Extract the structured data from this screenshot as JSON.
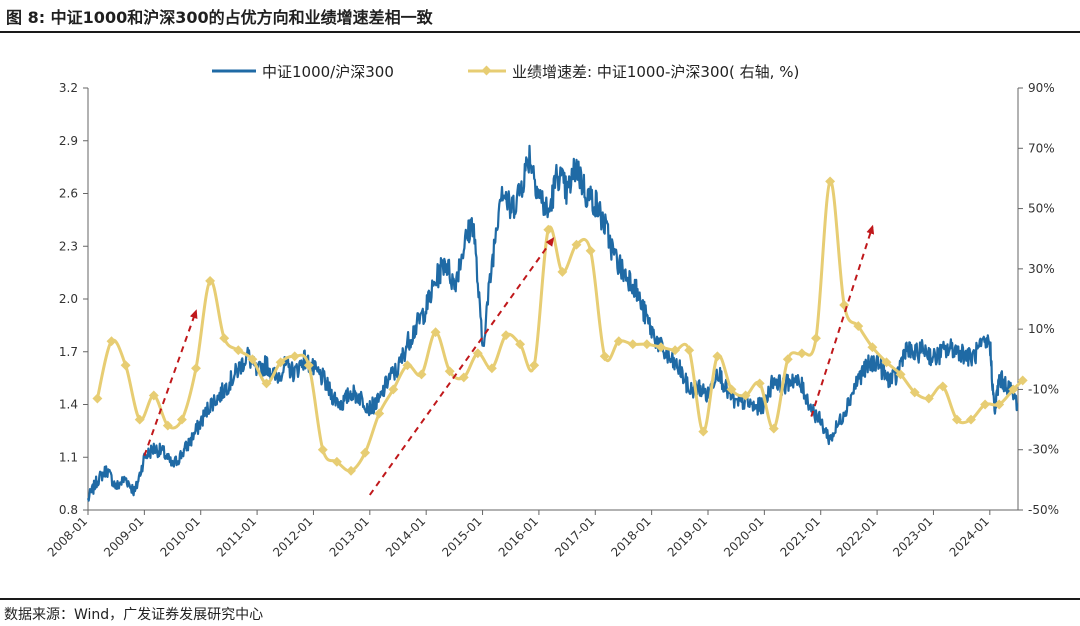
{
  "figure_title": "图 8:  中证1000和沪深300的占优方向和业绩增速差相一致",
  "source_note": "数据来源：Wind，广发证券发展研究中心",
  "colors": {
    "ratio": "#1f6aa5",
    "growth": "#e7cd73",
    "arrow": "#c0181b",
    "axis": "#666666"
  },
  "chart_data": {
    "type": "line",
    "legend_position": "top",
    "x_tick_labels": [
      "2008-01",
      "2009-01",
      "2010-01",
      "2011-01",
      "2012-01",
      "2013-01",
      "2014-01",
      "2015-01",
      "2016-01",
      "2017-01",
      "2018-01",
      "2019-01",
      "2020-01",
      "2021-01",
      "2022-01",
      "2023-01",
      "2024-01"
    ],
    "x_range": [
      "2008-01",
      "2024-07"
    ],
    "y_left": {
      "ticks": [
        "0.8",
        "1.1",
        "1.4",
        "1.7",
        "2.0",
        "2.3",
        "2.6",
        "2.9",
        "3.2"
      ],
      "range": [
        0.8,
        3.2
      ]
    },
    "y_right": {
      "ticks": [
        "-50%",
        "-30%",
        "-10%",
        "10%",
        "30%",
        "50%",
        "70%",
        "90%"
      ],
      "range": [
        -50,
        90
      ],
      "unit": "%"
    },
    "series": [
      {
        "name": "中证1000/沪深300",
        "axis": "left",
        "marker": "none",
        "points": [
          [
            "2008-01",
            0.86
          ],
          [
            "2008-03",
            0.97
          ],
          [
            "2008-05",
            1.03
          ],
          [
            "2008-07",
            0.93
          ],
          [
            "2008-09",
            0.98
          ],
          [
            "2008-11",
            0.9
          ],
          [
            "2009-01",
            1.1
          ],
          [
            "2009-03",
            1.15
          ],
          [
            "2009-05",
            1.13
          ],
          [
            "2009-07",
            1.05
          ],
          [
            "2009-09",
            1.12
          ],
          [
            "2009-11",
            1.2
          ],
          [
            "2010-01",
            1.3
          ],
          [
            "2010-03",
            1.4
          ],
          [
            "2010-05",
            1.45
          ],
          [
            "2010-07",
            1.52
          ],
          [
            "2010-09",
            1.6
          ],
          [
            "2010-11",
            1.68
          ],
          [
            "2011-01",
            1.58
          ],
          [
            "2011-03",
            1.63
          ],
          [
            "2011-05",
            1.55
          ],
          [
            "2011-07",
            1.62
          ],
          [
            "2011-09",
            1.58
          ],
          [
            "2011-11",
            1.66
          ],
          [
            "2012-01",
            1.6
          ],
          [
            "2012-03",
            1.55
          ],
          [
            "2012-05",
            1.45
          ],
          [
            "2012-07",
            1.4
          ],
          [
            "2012-09",
            1.47
          ],
          [
            "2012-11",
            1.44
          ],
          [
            "2013-01",
            1.38
          ],
          [
            "2013-03",
            1.42
          ],
          [
            "2013-05",
            1.55
          ],
          [
            "2013-07",
            1.6
          ],
          [
            "2013-09",
            1.75
          ],
          [
            "2013-11",
            1.85
          ],
          [
            "2014-01",
            1.95
          ],
          [
            "2014-03",
            2.1
          ],
          [
            "2014-05",
            2.22
          ],
          [
            "2014-07",
            2.08
          ],
          [
            "2014-09",
            2.3
          ],
          [
            "2014-11",
            2.45
          ],
          [
            "2015-01",
            1.72
          ],
          [
            "2015-03",
            2.2
          ],
          [
            "2015-05",
            2.65
          ],
          [
            "2015-07",
            2.5
          ],
          [
            "2015-09",
            2.62
          ],
          [
            "2015-11",
            2.82
          ],
          [
            "2016-01",
            2.6
          ],
          [
            "2016-03",
            2.48
          ],
          [
            "2016-05",
            2.72
          ],
          [
            "2016-07",
            2.6
          ],
          [
            "2016-09",
            2.76
          ],
          [
            "2016-11",
            2.6
          ],
          [
            "2017-01",
            2.55
          ],
          [
            "2017-03",
            2.42
          ],
          [
            "2017-05",
            2.25
          ],
          [
            "2017-07",
            2.15
          ],
          [
            "2017-09",
            2.1
          ],
          [
            "2017-11",
            1.95
          ],
          [
            "2018-01",
            1.82
          ],
          [
            "2018-03",
            1.72
          ],
          [
            "2018-05",
            1.65
          ],
          [
            "2018-07",
            1.6
          ],
          [
            "2018-09",
            1.48
          ],
          [
            "2018-11",
            1.5
          ],
          [
            "2019-01",
            1.45
          ],
          [
            "2019-03",
            1.6
          ],
          [
            "2019-05",
            1.48
          ],
          [
            "2019-07",
            1.4
          ],
          [
            "2019-09",
            1.42
          ],
          [
            "2019-11",
            1.38
          ],
          [
            "2020-01",
            1.4
          ],
          [
            "2020-03",
            1.55
          ],
          [
            "2020-05",
            1.5
          ],
          [
            "2020-07",
            1.55
          ],
          [
            "2020-09",
            1.5
          ],
          [
            "2020-11",
            1.38
          ],
          [
            "2021-01",
            1.3
          ],
          [
            "2021-03",
            1.2
          ],
          [
            "2021-05",
            1.3
          ],
          [
            "2021-07",
            1.42
          ],
          [
            "2021-09",
            1.55
          ],
          [
            "2021-11",
            1.62
          ],
          [
            "2022-01",
            1.65
          ],
          [
            "2022-03",
            1.55
          ],
          [
            "2022-05",
            1.55
          ],
          [
            "2022-07",
            1.72
          ],
          [
            "2022-09",
            1.68
          ],
          [
            "2022-11",
            1.72
          ],
          [
            "2023-01",
            1.66
          ],
          [
            "2023-03",
            1.7
          ],
          [
            "2023-05",
            1.72
          ],
          [
            "2023-07",
            1.7
          ],
          [
            "2023-09",
            1.66
          ],
          [
            "2023-11",
            1.72
          ],
          [
            "2024-01",
            1.76
          ],
          [
            "2024-02",
            1.35
          ],
          [
            "2024-03",
            1.55
          ],
          [
            "2024-05",
            1.5
          ],
          [
            "2024-07",
            1.4
          ]
        ]
      },
      {
        "name": "业绩增速差: 中证1000-沪深300( 右轴, %)",
        "axis": "right",
        "marker": "diamond",
        "points": [
          [
            "2008-03",
            -13
          ],
          [
            "2008-06",
            6
          ],
          [
            "2008-09",
            -2
          ],
          [
            "2008-12",
            -20
          ],
          [
            "2009-03",
            -12
          ],
          [
            "2009-06",
            -22
          ],
          [
            "2009-09",
            -20
          ],
          [
            "2009-12",
            -3
          ],
          [
            "2010-03",
            26
          ],
          [
            "2010-06",
            7
          ],
          [
            "2010-09",
            3
          ],
          [
            "2010-12",
            0
          ],
          [
            "2011-03",
            -8
          ],
          [
            "2011-06",
            -1
          ],
          [
            "2011-09",
            1
          ],
          [
            "2011-12",
            -2
          ],
          [
            "2012-03",
            -30
          ],
          [
            "2012-06",
            -34
          ],
          [
            "2012-09",
            -37
          ],
          [
            "2012-12",
            -31
          ],
          [
            "2013-03",
            -18
          ],
          [
            "2013-06",
            -10
          ],
          [
            "2013-09",
            -2
          ],
          [
            "2013-12",
            -5
          ],
          [
            "2014-03",
            9
          ],
          [
            "2014-06",
            -4
          ],
          [
            "2014-09",
            -6
          ],
          [
            "2014-12",
            2
          ],
          [
            "2015-03",
            -3
          ],
          [
            "2015-06",
            8
          ],
          [
            "2015-09",
            5
          ],
          [
            "2015-12",
            -2
          ],
          [
            "2016-03",
            43
          ],
          [
            "2016-06",
            29
          ],
          [
            "2016-09",
            38
          ],
          [
            "2016-12",
            36
          ],
          [
            "2017-03",
            1
          ],
          [
            "2017-06",
            6
          ],
          [
            "2017-09",
            5
          ],
          [
            "2017-12",
            5
          ],
          [
            "2018-03",
            4
          ],
          [
            "2018-06",
            3
          ],
          [
            "2018-09",
            3
          ],
          [
            "2018-12",
            -24
          ],
          [
            "2019-03",
            1
          ],
          [
            "2019-06",
            -10
          ],
          [
            "2019-09",
            -12
          ],
          [
            "2019-12",
            -8
          ],
          [
            "2020-03",
            -23
          ],
          [
            "2020-06",
            0
          ],
          [
            "2020-09",
            2
          ],
          [
            "2020-12",
            7
          ],
          [
            "2021-03",
            59
          ],
          [
            "2021-06",
            18
          ],
          [
            "2021-09",
            11
          ],
          [
            "2021-12",
            4
          ],
          [
            "2022-03",
            -1
          ],
          [
            "2022-06",
            -5
          ],
          [
            "2022-09",
            -11
          ],
          [
            "2022-12",
            -13
          ],
          [
            "2023-03",
            -9
          ],
          [
            "2023-06",
            -20
          ],
          [
            "2023-09",
            -20
          ],
          [
            "2023-12",
            -15
          ],
          [
            "2024-03",
            -15
          ],
          [
            "2024-06",
            -10
          ],
          [
            "2024-08",
            -7
          ]
        ]
      }
    ],
    "annotations": [
      {
        "type": "arrow",
        "from": [
          "2009-01",
          -32
        ],
        "to": [
          "2009-12",
          16
        ]
      },
      {
        "type": "arrow",
        "from": [
          "2013-01",
          -45
        ],
        "to": [
          "2016-04",
          40
        ]
      },
      {
        "type": "arrow",
        "from": [
          "2020-11",
          -19
        ],
        "to": [
          "2021-12",
          44
        ]
      }
    ]
  }
}
